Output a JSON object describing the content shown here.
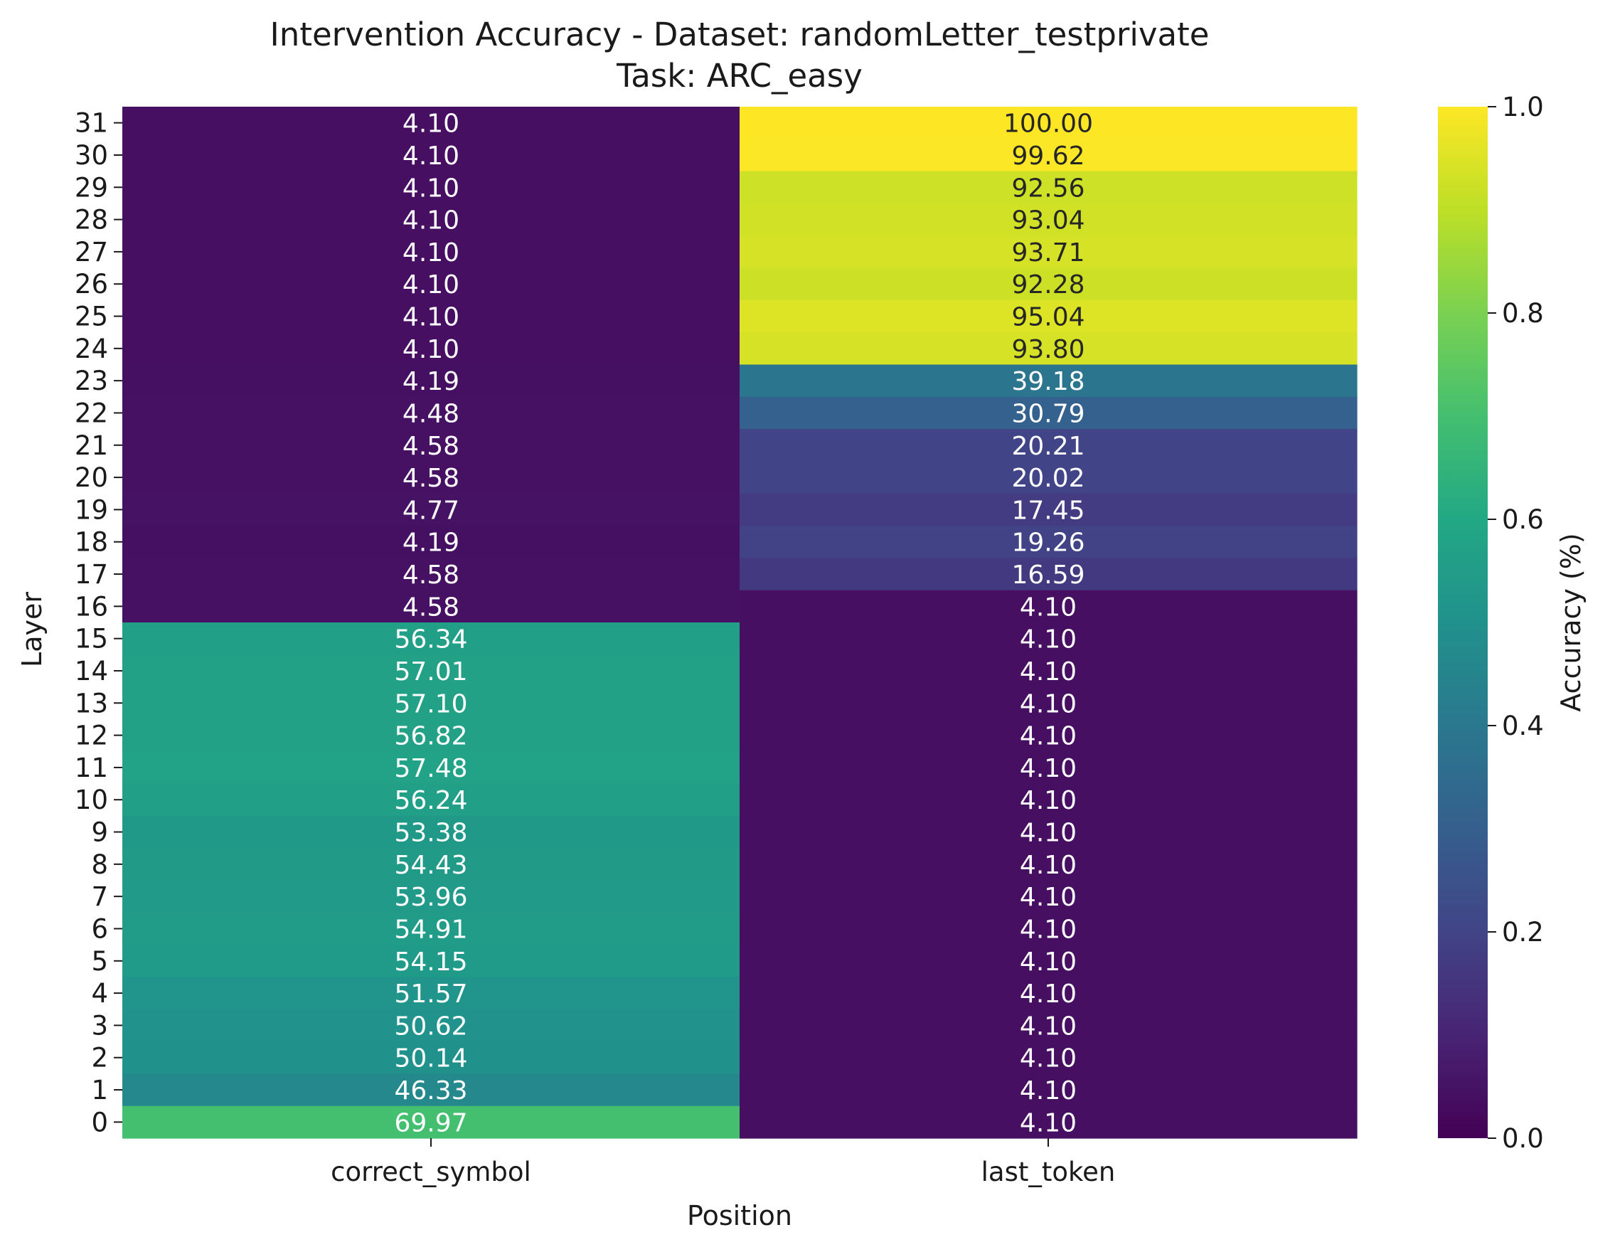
{
  "chart_data": {
    "type": "heatmap",
    "title": "Intervention Accuracy - Dataset: randomLetter_testprivate",
    "subtitle": "Task: ARC_easy",
    "xlabel": "Position",
    "ylabel": "Layer",
    "x_categories": [
      "correct_symbol",
      "last_token"
    ],
    "y_categories": [
      "31",
      "30",
      "29",
      "28",
      "27",
      "26",
      "25",
      "24",
      "23",
      "22",
      "21",
      "20",
      "19",
      "18",
      "17",
      "16",
      "15",
      "14",
      "13",
      "12",
      "11",
      "10",
      "9",
      "8",
      "7",
      "6",
      "5",
      "4",
      "3",
      "2",
      "1",
      "0"
    ],
    "values": [
      [
        4.1,
        100.0
      ],
      [
        4.1,
        99.62
      ],
      [
        4.1,
        92.56
      ],
      [
        4.1,
        93.04
      ],
      [
        4.1,
        93.71
      ],
      [
        4.1,
        92.28
      ],
      [
        4.1,
        95.04
      ],
      [
        4.1,
        93.8
      ],
      [
        4.19,
        39.18
      ],
      [
        4.48,
        30.79
      ],
      [
        4.58,
        20.21
      ],
      [
        4.58,
        20.02
      ],
      [
        4.77,
        17.45
      ],
      [
        4.19,
        19.26
      ],
      [
        4.58,
        16.59
      ],
      [
        4.58,
        4.1
      ],
      [
        56.34,
        4.1
      ],
      [
        57.01,
        4.1
      ],
      [
        57.1,
        4.1
      ],
      [
        56.82,
        4.1
      ],
      [
        57.48,
        4.1
      ],
      [
        56.24,
        4.1
      ],
      [
        53.38,
        4.1
      ],
      [
        54.43,
        4.1
      ],
      [
        53.96,
        4.1
      ],
      [
        54.91,
        4.1
      ],
      [
        54.15,
        4.1
      ],
      [
        51.57,
        4.1
      ],
      [
        50.62,
        4.1
      ],
      [
        50.14,
        4.1
      ],
      [
        46.33,
        4.1
      ],
      [
        69.97,
        4.1
      ]
    ],
    "value_labels": [
      [
        "4.10",
        "100.00"
      ],
      [
        "4.10",
        "99.62"
      ],
      [
        "4.10",
        "92.56"
      ],
      [
        "4.10",
        "93.04"
      ],
      [
        "4.10",
        "93.71"
      ],
      [
        "4.10",
        "92.28"
      ],
      [
        "4.10",
        "95.04"
      ],
      [
        "4.10",
        "93.80"
      ],
      [
        "4.19",
        "39.18"
      ],
      [
        "4.48",
        "30.79"
      ],
      [
        "4.58",
        "20.21"
      ],
      [
        "4.58",
        "20.02"
      ],
      [
        "4.77",
        "17.45"
      ],
      [
        "4.19",
        "19.26"
      ],
      [
        "4.58",
        "16.59"
      ],
      [
        "4.58",
        "4.10"
      ],
      [
        "56.34",
        "4.10"
      ],
      [
        "57.01",
        "4.10"
      ],
      [
        "57.10",
        "4.10"
      ],
      [
        "56.82",
        "4.10"
      ],
      [
        "57.48",
        "4.10"
      ],
      [
        "56.24",
        "4.10"
      ],
      [
        "53.38",
        "4.10"
      ],
      [
        "54.43",
        "4.10"
      ],
      [
        "53.96",
        "4.10"
      ],
      [
        "54.91",
        "4.10"
      ],
      [
        "54.15",
        "4.10"
      ],
      [
        "51.57",
        "4.10"
      ],
      [
        "50.62",
        "4.10"
      ],
      [
        "50.14",
        "4.10"
      ],
      [
        "46.33",
        "4.10"
      ],
      [
        "69.97",
        "4.10"
      ]
    ],
    "colormap": "viridis",
    "colorbar": {
      "label": "Accuracy (%)",
      "range": [
        0.0,
        1.0
      ],
      "ticks": [
        "0.0",
        "0.2",
        "0.4",
        "0.6",
        "0.8",
        "1.0"
      ]
    },
    "grid": false,
    "legend": "right"
  }
}
